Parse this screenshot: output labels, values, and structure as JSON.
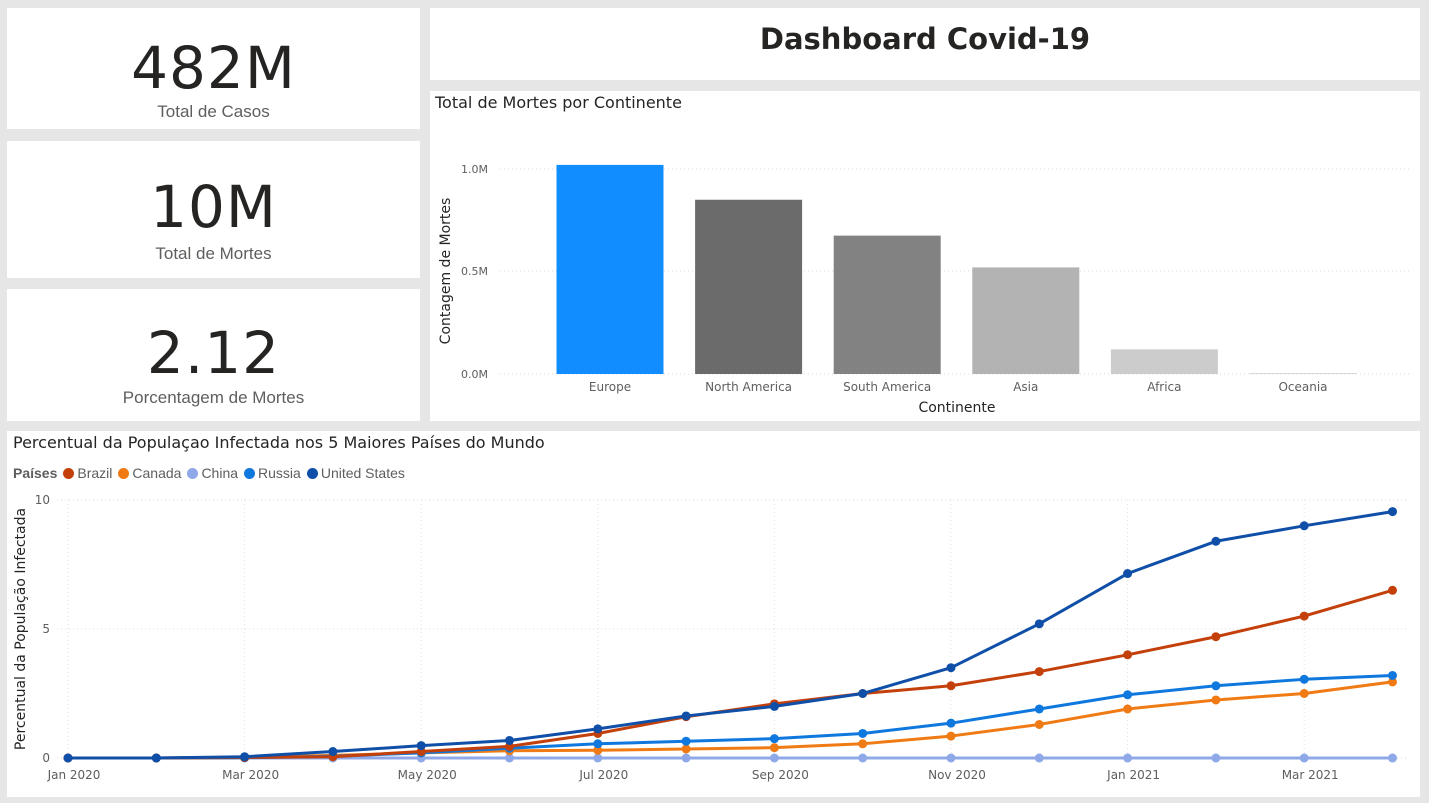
{
  "kpis": [
    {
      "value": "482M",
      "label": "Total de Casos"
    },
    {
      "value": "10M",
      "label": "Total de Mortes"
    },
    {
      "value": "2.12",
      "label": "Porcentagem de Mortes"
    }
  ],
  "dashboard_title": "Dashboard Covid-19",
  "colors": {
    "highlight": "#118dff",
    "Brazil": "#c4400b",
    "Canada": "#f07b15",
    "China": "#8fa9e8",
    "Russia": "#0f78de",
    "United States": "#0f4fa8"
  },
  "chart_data": [
    {
      "type": "bar",
      "title": "Total de Mortes por Continente",
      "xlabel": "Continente",
      "ylabel": "Contagem de Mortes",
      "categories": [
        "Europe",
        "North America",
        "South America",
        "Asia",
        "Africa",
        "Oceania"
      ],
      "values": [
        1020000,
        850000,
        675000,
        520000,
        120000,
        5000
      ],
      "bar_colors": [
        "#118dff",
        "#6b6b6b",
        "#828282",
        "#b3b3b3",
        "#cccccc",
        "#d9d9d9"
      ],
      "yticks": [
        0,
        500000,
        1000000
      ],
      "ytick_labels": [
        "0.0M",
        "0.5M",
        "1.0M"
      ],
      "ylim": [
        0,
        1000000
      ],
      "grid": true
    },
    {
      "type": "line",
      "title": "Percentual da Populaçao Infectada nos 5 Maiores Países do Mundo",
      "xlabel": "",
      "ylabel": "Percentual da População Infectada",
      "legend_title": "Países",
      "legend_position": "top-left",
      "x": [
        "2020-01",
        "2020-02",
        "2020-03",
        "2020-04",
        "2020-05",
        "2020-06",
        "2020-07",
        "2020-08",
        "2020-09",
        "2020-10",
        "2020-11",
        "2020-12",
        "2021-01",
        "2021-02",
        "2021-03",
        "2021-04"
      ],
      "xtick_labels": [
        "Jan 2020",
        "Mar 2020",
        "May 2020",
        "Jul 2020",
        "Sep 2020",
        "Nov 2020",
        "Jan 2021",
        "Mar 2021"
      ],
      "xtick_indices": [
        0,
        2,
        4,
        6,
        8,
        10,
        12,
        14
      ],
      "yticks": [
        0,
        5,
        10
      ],
      "ylim": [
        0,
        10
      ],
      "grid": true,
      "series": [
        {
          "name": "Brazil",
          "values": [
            0,
            0,
            0.02,
            0.05,
            0.25,
            0.45,
            0.95,
            1.6,
            2.1,
            2.5,
            2.8,
            3.35,
            4.0,
            4.7,
            5.5,
            6.5
          ]
        },
        {
          "name": "Canada",
          "values": [
            0,
            0,
            0.02,
            0.1,
            0.2,
            0.28,
            0.3,
            0.35,
            0.4,
            0.55,
            0.85,
            1.3,
            1.9,
            2.25,
            2.5,
            2.95
          ]
        },
        {
          "name": "China",
          "values": [
            0,
            0,
            0,
            0,
            0,
            0,
            0,
            0,
            0,
            0,
            0,
            0,
            0,
            0,
            0,
            0
          ]
        },
        {
          "name": "Russia",
          "values": [
            0,
            0,
            0.01,
            0.07,
            0.2,
            0.38,
            0.55,
            0.65,
            0.75,
            0.95,
            1.35,
            1.9,
            2.45,
            2.8,
            3.05,
            3.2
          ]
        },
        {
          "name": "United States",
          "values": [
            0,
            0,
            0.05,
            0.25,
            0.48,
            0.68,
            1.13,
            1.63,
            2.0,
            2.5,
            3.5,
            5.2,
            7.15,
            8.4,
            9.0,
            9.55
          ]
        }
      ]
    }
  ]
}
